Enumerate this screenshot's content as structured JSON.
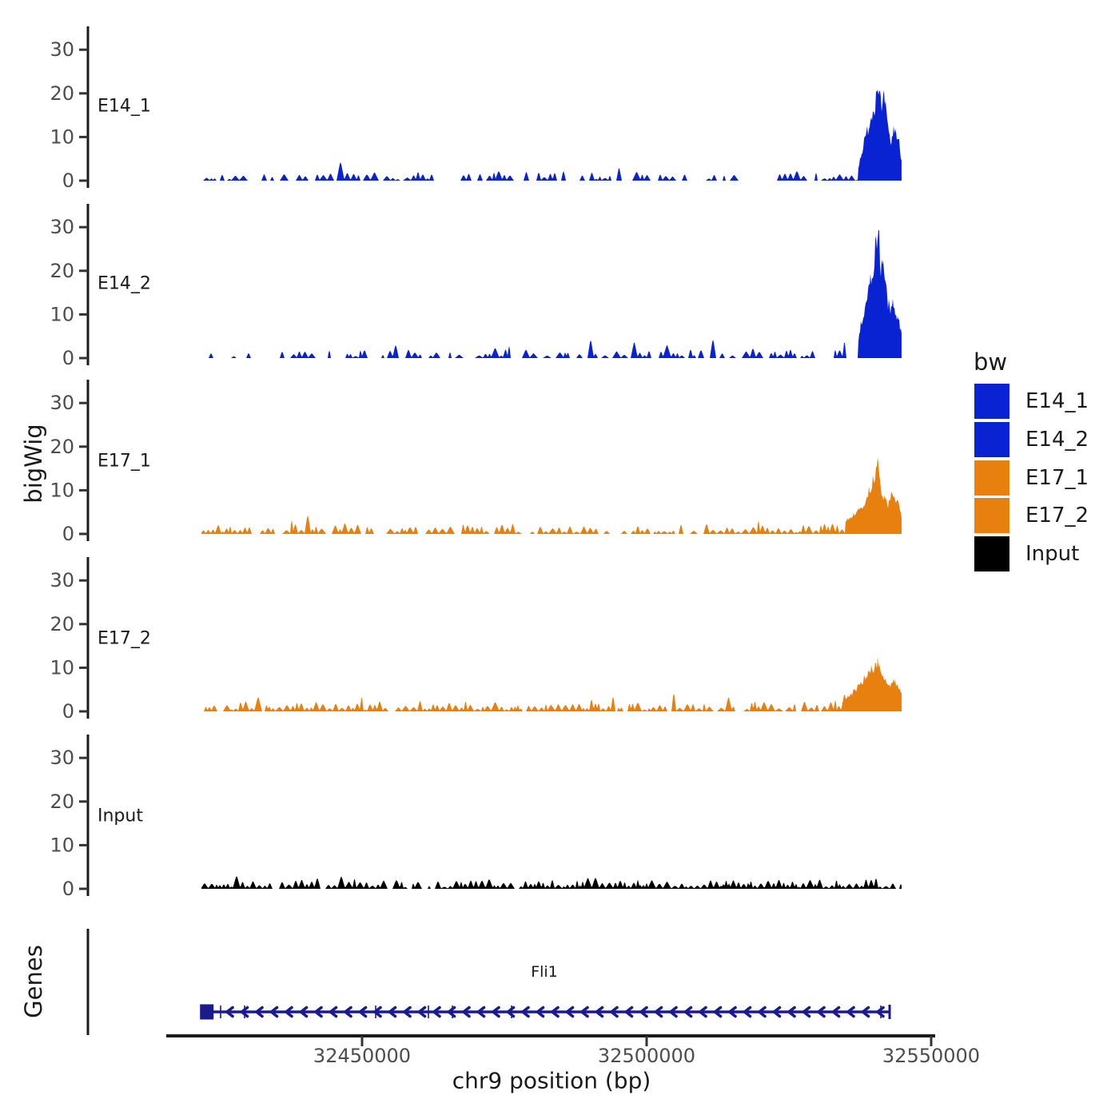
{
  "chart_data": {
    "type": "area",
    "title": "",
    "grid": false,
    "genes_label": "Genes",
    "x": {
      "label": "chr9 position (bp)",
      "chromosome": "chr9",
      "range": [
        32421800,
        32544800
      ],
      "ticks": [
        32450000,
        32500000,
        32550000
      ],
      "tick_labels": [
        "32450000",
        "32500000",
        "32550000"
      ]
    },
    "y": {
      "label": "bigWig",
      "range": [
        0,
        35
      ],
      "ticks": [
        0,
        10,
        20,
        30
      ]
    },
    "legend": {
      "title": "bw",
      "position": "right",
      "entries": [
        {
          "label": "E14_1",
          "color": "#0A23D2"
        },
        {
          "label": "E14_2",
          "color": "#0A23D2"
        },
        {
          "label": "E17_1",
          "color": "#E8800F"
        },
        {
          "label": "E17_2",
          "color": "#E8800F"
        },
        {
          "label": "Input",
          "color": "#000000"
        }
      ]
    },
    "tracks": [
      {
        "name": "E14_1",
        "color": "#0A23D2",
        "seed": 7,
        "gap": 0.45,
        "peak_summit_bp": 32540700,
        "peak_height": 23,
        "profile": [
          [
            32421800,
            0.6
          ],
          [
            32426000,
            0.9
          ],
          [
            32430000,
            0.6
          ],
          [
            32434000,
            1.3
          ],
          [
            32438000,
            0.8
          ],
          [
            32442000,
            1.0
          ],
          [
            32444500,
            2.2
          ],
          [
            32447000,
            0.9
          ],
          [
            32451000,
            1.1
          ],
          [
            32455000,
            0.8
          ],
          [
            32459000,
            1.4
          ],
          [
            32463000,
            0.8
          ],
          [
            32467000,
            1.1
          ],
          [
            32471000,
            1.7
          ],
          [
            32475000,
            0.9
          ],
          [
            32479000,
            1.2
          ],
          [
            32483000,
            1.0
          ],
          [
            32487000,
            1.8
          ],
          [
            32491000,
            1.0
          ],
          [
            32495000,
            2.0
          ],
          [
            32499000,
            1.1
          ],
          [
            32503000,
            0.8
          ],
          [
            32507000,
            1.5
          ],
          [
            32511000,
            1.0
          ],
          [
            32515000,
            2.2
          ],
          [
            32519000,
            1.1
          ],
          [
            32523000,
            1.0
          ],
          [
            32527000,
            1.5
          ],
          [
            32531000,
            1.0
          ],
          [
            32534500,
            1.2
          ],
          [
            32536800,
            0.3
          ],
          [
            32537600,
            5.5
          ],
          [
            32538400,
            9.5
          ],
          [
            32539200,
            13.5
          ],
          [
            32540000,
            17.0
          ],
          [
            32540700,
            23.0
          ],
          [
            32541300,
            15.5
          ],
          [
            32541800,
            19.0
          ],
          [
            32542400,
            11.5
          ],
          [
            32543000,
            8.5
          ],
          [
            32543500,
            12.5
          ],
          [
            32544000,
            10.0
          ],
          [
            32544400,
            8.5
          ],
          [
            32544800,
            4.5
          ]
        ]
      },
      {
        "name": "E14_2",
        "color": "#0A23D2",
        "seed": 13,
        "gap": 0.42,
        "peak_summit_bp": 32540700,
        "peak_height": 33,
        "profile": [
          [
            32421800,
            0.7
          ],
          [
            32425000,
            1.0
          ],
          [
            32429000,
            0.7
          ],
          [
            32433000,
            1.2
          ],
          [
            32437000,
            0.9
          ],
          [
            32441000,
            1.5
          ],
          [
            32445000,
            0.9
          ],
          [
            32449000,
            1.2
          ],
          [
            32453000,
            0.8
          ],
          [
            32457000,
            1.3
          ],
          [
            32461000,
            0.9
          ],
          [
            32465000,
            1.2
          ],
          [
            32469000,
            0.8
          ],
          [
            32473000,
            1.6
          ],
          [
            32477000,
            1.0
          ],
          [
            32481000,
            1.3
          ],
          [
            32485000,
            0.9
          ],
          [
            32489000,
            1.4
          ],
          [
            32493000,
            1.0
          ],
          [
            32497000,
            1.2
          ],
          [
            32501000,
            0.9
          ],
          [
            32505000,
            1.3
          ],
          [
            32509000,
            1.8
          ],
          [
            32513000,
            1.0
          ],
          [
            32517000,
            1.4
          ],
          [
            32521000,
            1.0
          ],
          [
            32525000,
            1.2
          ],
          [
            32529000,
            0.9
          ],
          [
            32533000,
            1.3
          ],
          [
            32536000,
            1.0
          ],
          [
            32536900,
            0.4
          ],
          [
            32537400,
            6.0
          ],
          [
            32538200,
            11.0
          ],
          [
            32539000,
            15.0
          ],
          [
            32539800,
            21.0
          ],
          [
            32540300,
            25.0
          ],
          [
            32540700,
            33.0
          ],
          [
            32541100,
            19.0
          ],
          [
            32541600,
            23.5
          ],
          [
            32542200,
            14.0
          ],
          [
            32542800,
            10.5
          ],
          [
            32543400,
            12.5
          ],
          [
            32544000,
            9.5
          ],
          [
            32544400,
            8.0
          ],
          [
            32544800,
            5.5
          ]
        ]
      },
      {
        "name": "E17_1",
        "color": "#E8800F",
        "seed": 21,
        "gap": 0.22,
        "peak_summit_bp": 32540700,
        "peak_height": 17,
        "profile": [
          [
            32421800,
            0.9
          ],
          [
            32425000,
            1.3
          ],
          [
            32428000,
            0.9
          ],
          [
            32431000,
            1.1
          ],
          [
            32434000,
            1.5
          ],
          [
            32437000,
            2.6
          ],
          [
            32439500,
            1.1
          ],
          [
            32443000,
            1.5
          ],
          [
            32446000,
            1.0
          ],
          [
            32449000,
            1.3
          ],
          [
            32452000,
            0.9
          ],
          [
            32455000,
            1.2
          ],
          [
            32458000,
            1.0
          ],
          [
            32461000,
            1.3
          ],
          [
            32464000,
            1.0
          ],
          [
            32467000,
            1.4
          ],
          [
            32470000,
            1.0
          ],
          [
            32473000,
            1.2
          ],
          [
            32476000,
            1.4
          ],
          [
            32479000,
            1.0
          ],
          [
            32482000,
            1.2
          ],
          [
            32485000,
            1.0
          ],
          [
            32488000,
            1.3
          ],
          [
            32491000,
            1.5
          ],
          [
            32494000,
            1.0
          ],
          [
            32497000,
            1.2
          ],
          [
            32500000,
            1.1
          ],
          [
            32503000,
            1.0
          ],
          [
            32506000,
            1.3
          ],
          [
            32509000,
            1.4
          ],
          [
            32512000,
            1.1
          ],
          [
            32515000,
            1.3
          ],
          [
            32518000,
            1.1
          ],
          [
            32521000,
            1.4
          ],
          [
            32524000,
            1.0
          ],
          [
            32527000,
            1.2
          ],
          [
            32530000,
            1.4
          ],
          [
            32532500,
            1.6
          ],
          [
            32534000,
            2.2
          ],
          [
            32535500,
            3.5
          ],
          [
            32536500,
            4.5
          ],
          [
            32537500,
            5.5
          ],
          [
            32538300,
            7.0
          ],
          [
            32539000,
            9.5
          ],
          [
            32539700,
            12.0
          ],
          [
            32540300,
            13.5
          ],
          [
            32540700,
            17.0
          ],
          [
            32541200,
            10.0
          ],
          [
            32541800,
            8.0
          ],
          [
            32542400,
            6.5
          ],
          [
            32543000,
            9.5
          ],
          [
            32543600,
            8.5
          ],
          [
            32544200,
            7.0
          ],
          [
            32544800,
            4.0
          ]
        ]
      },
      {
        "name": "E17_2",
        "color": "#E8800F",
        "seed": 29,
        "gap": 0.18,
        "peak_summit_bp": 32540700,
        "peak_height": 11.5,
        "profile": [
          [
            32421800,
            1.0
          ],
          [
            32424500,
            1.4
          ],
          [
            32427000,
            1.0
          ],
          [
            32430000,
            1.6
          ],
          [
            32433000,
            1.1
          ],
          [
            32436000,
            1.4
          ],
          [
            32439000,
            1.0
          ],
          [
            32442000,
            1.7
          ],
          [
            32445000,
            1.1
          ],
          [
            32448000,
            1.3
          ],
          [
            32451000,
            1.0
          ],
          [
            32454000,
            1.5
          ],
          [
            32457000,
            1.1
          ],
          [
            32460000,
            1.3
          ],
          [
            32463000,
            1.0
          ],
          [
            32466000,
            1.4
          ],
          [
            32469000,
            1.1
          ],
          [
            32472000,
            1.3
          ],
          [
            32475000,
            1.0
          ],
          [
            32478000,
            1.5
          ],
          [
            32481000,
            1.1
          ],
          [
            32484000,
            1.3
          ],
          [
            32487000,
            1.0
          ],
          [
            32490000,
            1.6
          ],
          [
            32493000,
            1.2
          ],
          [
            32496000,
            1.3
          ],
          [
            32499000,
            1.0
          ],
          [
            32502000,
            1.4
          ],
          [
            32505000,
            1.1
          ],
          [
            32508000,
            1.3
          ],
          [
            32511000,
            1.0
          ],
          [
            32514000,
            1.5
          ],
          [
            32517000,
            1.1
          ],
          [
            32520000,
            1.3
          ],
          [
            32523000,
            1.0
          ],
          [
            32526000,
            1.4
          ],
          [
            32529000,
            1.2
          ],
          [
            32532000,
            1.5
          ],
          [
            32534500,
            2.5
          ],
          [
            32536000,
            4.0
          ],
          [
            32537000,
            5.5
          ],
          [
            32538000,
            7.0
          ],
          [
            32538800,
            8.5
          ],
          [
            32539500,
            9.5
          ],
          [
            32540100,
            10.5
          ],
          [
            32540700,
            11.5
          ],
          [
            32541300,
            8.0
          ],
          [
            32542000,
            7.0
          ],
          [
            32542700,
            6.0
          ],
          [
            32543400,
            7.0
          ],
          [
            32544100,
            6.0
          ],
          [
            32544800,
            4.5
          ]
        ]
      },
      {
        "name": "Input",
        "color": "#000000",
        "seed": 41,
        "gap": 0.1,
        "peak_summit_bp": null,
        "peak_height": null,
        "profile": [
          [
            32421800,
            1.1
          ],
          [
            32426000,
            1.3
          ],
          [
            32430000,
            1.0
          ],
          [
            32434000,
            1.4
          ],
          [
            32438000,
            1.1
          ],
          [
            32442000,
            1.3
          ],
          [
            32446000,
            1.0
          ],
          [
            32450000,
            1.4
          ],
          [
            32454000,
            1.1
          ],
          [
            32458000,
            1.2
          ],
          [
            32462000,
            1.0
          ],
          [
            32466000,
            1.3
          ],
          [
            32470000,
            1.1
          ],
          [
            32474000,
            1.4
          ],
          [
            32478000,
            1.0
          ],
          [
            32482000,
            1.2
          ],
          [
            32486000,
            1.1
          ],
          [
            32490000,
            1.5
          ],
          [
            32494000,
            1.1
          ],
          [
            32498000,
            1.2
          ],
          [
            32502000,
            1.0
          ],
          [
            32506000,
            1.3
          ],
          [
            32510000,
            1.1
          ],
          [
            32514000,
            1.2
          ],
          [
            32518000,
            1.0
          ],
          [
            32522000,
            1.3
          ],
          [
            32526000,
            1.1
          ],
          [
            32530000,
            1.4
          ],
          [
            32534000,
            1.1
          ],
          [
            32538000,
            1.3
          ],
          [
            32541000,
            1.1
          ],
          [
            32544800,
            1.2
          ]
        ]
      }
    ],
    "genes": [
      {
        "name": "Fli1",
        "chrom": "chr9",
        "start": 32421800,
        "end": 32542700,
        "strand": "-",
        "color": "#1B1B8E",
        "exon_ticks": [
          32425140,
          32429355,
          32452390,
          32461660,
          32465875,
          32476270,
          32541155
        ]
      }
    ]
  }
}
